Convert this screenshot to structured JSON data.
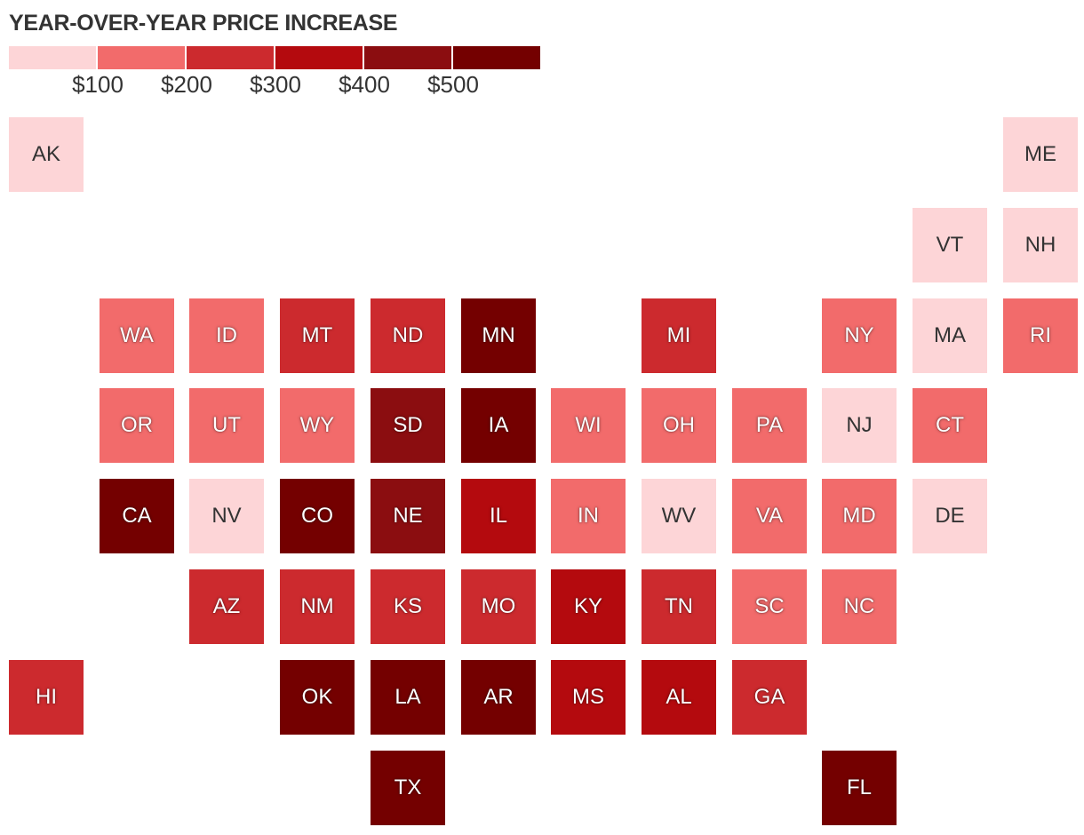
{
  "title": "YEAR-OVER-YEAR PRICE INCREASE",
  "legend": {
    "colors": [
      "#fdd5d7",
      "#f26b6b",
      "#cc2a2e",
      "#b40a0e",
      "#8b0d10",
      "#740000"
    ],
    "ticks": [
      "$100",
      "$200",
      "$300",
      "$400",
      "$500"
    ]
  },
  "chart_data": {
    "type": "heatmap",
    "title": "YEAR-OVER-YEAR PRICE INCREASE",
    "value_bins": [
      "<$100",
      "$100–$200",
      "$200–$300",
      "$300–$400",
      "$400–$500",
      ">$500"
    ],
    "states": [
      {
        "abbr": "AK",
        "col": 0,
        "row": 0,
        "bin": 0
      },
      {
        "abbr": "ME",
        "col": 11,
        "row": 0,
        "bin": 0
      },
      {
        "abbr": "VT",
        "col": 10,
        "row": 1,
        "bin": 0
      },
      {
        "abbr": "NH",
        "col": 11,
        "row": 1,
        "bin": 0
      },
      {
        "abbr": "WA",
        "col": 1,
        "row": 2,
        "bin": 1
      },
      {
        "abbr": "ID",
        "col": 2,
        "row": 2,
        "bin": 1
      },
      {
        "abbr": "MT",
        "col": 3,
        "row": 2,
        "bin": 2
      },
      {
        "abbr": "ND",
        "col": 4,
        "row": 2,
        "bin": 2
      },
      {
        "abbr": "MN",
        "col": 5,
        "row": 2,
        "bin": 5
      },
      {
        "abbr": "MI",
        "col": 7,
        "row": 2,
        "bin": 2
      },
      {
        "abbr": "NY",
        "col": 9,
        "row": 2,
        "bin": 1
      },
      {
        "abbr": "MA",
        "col": 10,
        "row": 2,
        "bin": 0
      },
      {
        "abbr": "RI",
        "col": 11,
        "row": 2,
        "bin": 1
      },
      {
        "abbr": "OR",
        "col": 1,
        "row": 3,
        "bin": 1
      },
      {
        "abbr": "UT",
        "col": 2,
        "row": 3,
        "bin": 1
      },
      {
        "abbr": "WY",
        "col": 3,
        "row": 3,
        "bin": 1
      },
      {
        "abbr": "SD",
        "col": 4,
        "row": 3,
        "bin": 4
      },
      {
        "abbr": "IA",
        "col": 5,
        "row": 3,
        "bin": 5
      },
      {
        "abbr": "WI",
        "col": 6,
        "row": 3,
        "bin": 1
      },
      {
        "abbr": "OH",
        "col": 7,
        "row": 3,
        "bin": 1
      },
      {
        "abbr": "PA",
        "col": 8,
        "row": 3,
        "bin": 1
      },
      {
        "abbr": "NJ",
        "col": 9,
        "row": 3,
        "bin": 0
      },
      {
        "abbr": "CT",
        "col": 10,
        "row": 3,
        "bin": 1
      },
      {
        "abbr": "CA",
        "col": 1,
        "row": 4,
        "bin": 5
      },
      {
        "abbr": "NV",
        "col": 2,
        "row": 4,
        "bin": 0
      },
      {
        "abbr": "CO",
        "col": 3,
        "row": 4,
        "bin": 5
      },
      {
        "abbr": "NE",
        "col": 4,
        "row": 4,
        "bin": 4
      },
      {
        "abbr": "IL",
        "col": 5,
        "row": 4,
        "bin": 3
      },
      {
        "abbr": "IN",
        "col": 6,
        "row": 4,
        "bin": 1
      },
      {
        "abbr": "WV",
        "col": 7,
        "row": 4,
        "bin": 0
      },
      {
        "abbr": "VA",
        "col": 8,
        "row": 4,
        "bin": 1
      },
      {
        "abbr": "MD",
        "col": 9,
        "row": 4,
        "bin": 1
      },
      {
        "abbr": "DE",
        "col": 10,
        "row": 4,
        "bin": 0
      },
      {
        "abbr": "AZ",
        "col": 2,
        "row": 5,
        "bin": 2
      },
      {
        "abbr": "NM",
        "col": 3,
        "row": 5,
        "bin": 2
      },
      {
        "abbr": "KS",
        "col": 4,
        "row": 5,
        "bin": 2
      },
      {
        "abbr": "MO",
        "col": 5,
        "row": 5,
        "bin": 2
      },
      {
        "abbr": "KY",
        "col": 6,
        "row": 5,
        "bin": 3
      },
      {
        "abbr": "TN",
        "col": 7,
        "row": 5,
        "bin": 2
      },
      {
        "abbr": "SC",
        "col": 8,
        "row": 5,
        "bin": 1
      },
      {
        "abbr": "NC",
        "col": 9,
        "row": 5,
        "bin": 1
      },
      {
        "abbr": "HI",
        "col": 0,
        "row": 6,
        "bin": 2
      },
      {
        "abbr": "OK",
        "col": 3,
        "row": 6,
        "bin": 5
      },
      {
        "abbr": "LA",
        "col": 4,
        "row": 6,
        "bin": 5
      },
      {
        "abbr": "AR",
        "col": 5,
        "row": 6,
        "bin": 5
      },
      {
        "abbr": "MS",
        "col": 6,
        "row": 6,
        "bin": 3
      },
      {
        "abbr": "AL",
        "col": 7,
        "row": 6,
        "bin": 3
      },
      {
        "abbr": "GA",
        "col": 8,
        "row": 6,
        "bin": 2
      },
      {
        "abbr": "TX",
        "col": 4,
        "row": 7,
        "bin": 5
      },
      {
        "abbr": "FL",
        "col": 9,
        "row": 7,
        "bin": 5
      }
    ]
  }
}
